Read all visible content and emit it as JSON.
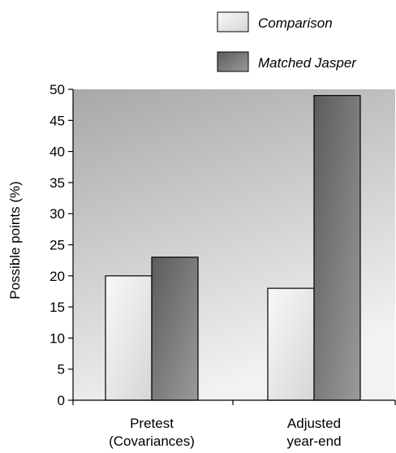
{
  "chart_data": {
    "type": "bar",
    "categories": [
      "Pretest\n(Covariances)",
      "Adjusted\nyear-end"
    ],
    "series": [
      {
        "name": "Comparison",
        "values": [
          20,
          18
        ]
      },
      {
        "name": "Matched Jasper",
        "values": [
          23,
          49
        ]
      }
    ],
    "xlabel": "",
    "ylabel": "Possible points (%)",
    "ylim": [
      0,
      50
    ],
    "yticks": [
      0,
      5,
      10,
      15,
      20,
      25,
      30,
      35,
      40,
      45,
      50
    ],
    "legend_position": "top-right",
    "grid": false
  },
  "colors": {
    "plot_background_top": "#a8a8a8",
    "plot_background_bottom": "#f2f2f2",
    "comparison_fill_light": "#f8f8f8",
    "comparison_fill_dark": "#d6d6d6",
    "jasper_fill_dark": "#5c5c5c",
    "jasper_fill_light": "#9a9a9a",
    "outline": "#000000"
  }
}
